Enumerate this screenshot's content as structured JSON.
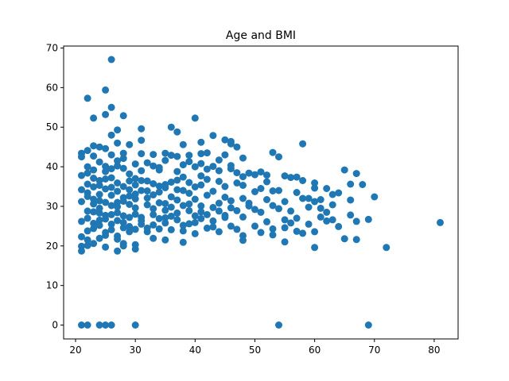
{
  "chart_data": {
    "type": "scatter",
    "title": "Age and BMI",
    "xlabel": "",
    "ylabel": "",
    "xlim": [
      18,
      84
    ],
    "ylim": [
      -3.5,
      70.5
    ],
    "xticks": [
      20,
      30,
      40,
      50,
      60,
      70,
      80
    ],
    "yticks": [
      0,
      10,
      20,
      30,
      40,
      50,
      60,
      70
    ],
    "grid": false,
    "legend": "none",
    "marker_color": "#1f77b4",
    "points": [
      [
        21,
        0
      ],
      [
        22,
        0
      ],
      [
        24,
        0
      ],
      [
        25,
        0
      ],
      [
        26,
        0
      ],
      [
        30,
        0
      ],
      [
        54,
        0
      ],
      [
        69,
        0
      ],
      [
        26,
        67.1
      ],
      [
        25,
        59.4
      ],
      [
        22,
        57.3
      ],
      [
        26,
        55
      ],
      [
        25,
        53.2
      ],
      [
        23,
        52.3
      ],
      [
        28,
        52.9
      ],
      [
        40,
        52.3
      ],
      [
        36,
        50.0
      ],
      [
        31,
        49.6
      ],
      [
        27,
        49.3
      ],
      [
        37,
        48.8
      ],
      [
        26,
        48.0
      ],
      [
        43,
        47.9
      ],
      [
        45,
        46.8
      ],
      [
        46,
        46.4
      ],
      [
        41,
        46.2
      ],
      [
        31,
        46.7
      ],
      [
        27,
        46.0
      ],
      [
        29,
        45.6
      ],
      [
        38,
        45.6
      ],
      [
        46,
        45.8
      ],
      [
        47,
        45.0
      ],
      [
        23,
        45.3
      ],
      [
        24,
        45.0
      ],
      [
        25,
        44.6
      ],
      [
        22,
        44.1
      ],
      [
        21,
        43.4
      ],
      [
        21,
        42.5
      ],
      [
        23,
        42.7
      ],
      [
        26,
        43.0
      ],
      [
        28,
        43.4
      ],
      [
        31,
        43.3
      ],
      [
        33,
        43.1
      ],
      [
        35,
        43.4
      ],
      [
        36,
        42.9
      ],
      [
        41,
        43.3
      ],
      [
        42,
        43.5
      ],
      [
        45,
        43.0
      ],
      [
        48,
        42.2
      ],
      [
        53,
        43.6
      ],
      [
        54,
        42.5
      ],
      [
        58,
        45.8
      ],
      [
        33,
        40.2
      ],
      [
        30,
        40.7
      ],
      [
        27,
        40.2
      ],
      [
        22,
        40.0
      ],
      [
        25,
        40.1
      ],
      [
        28,
        39.6
      ],
      [
        31,
        39.0
      ],
      [
        34,
        39.2
      ],
      [
        37,
        38.8
      ],
      [
        38,
        40.5
      ],
      [
        39,
        41.3
      ],
      [
        40,
        40.0
      ],
      [
        42,
        39.4
      ],
      [
        43,
        40.1
      ],
      [
        44,
        39.0
      ],
      [
        46,
        39.5
      ],
      [
        47,
        38.5
      ],
      [
        49,
        38.4
      ],
      [
        51,
        38.7
      ],
      [
        52,
        37.9
      ],
      [
        55,
        37.7
      ],
      [
        56,
        37.3
      ],
      [
        57,
        37.4
      ],
      [
        58,
        36.5
      ],
      [
        60,
        35.9
      ],
      [
        62,
        34.5
      ],
      [
        63,
        33.0
      ],
      [
        65,
        39.2
      ],
      [
        66,
        35.6
      ],
      [
        67,
        38.3
      ],
      [
        68,
        35.5
      ],
      [
        70,
        32.4
      ],
      [
        21,
        37.8
      ],
      [
        23,
        37.1
      ],
      [
        24,
        36.5
      ],
      [
        26,
        37.2
      ],
      [
        27,
        35.9
      ],
      [
        29,
        36.4
      ],
      [
        30,
        37.0
      ],
      [
        32,
        36.4
      ],
      [
        33,
        35.7
      ],
      [
        35,
        35.5
      ],
      [
        36,
        36.1
      ],
      [
        38,
        37.4
      ],
      [
        39,
        36.0
      ],
      [
        41,
        35.4
      ],
      [
        42,
        36.8
      ],
      [
        44,
        36.3
      ],
      [
        45,
        35.0
      ],
      [
        47,
        35.9
      ],
      [
        48,
        35.3
      ],
      [
        50,
        33.7
      ],
      [
        51,
        34.5
      ],
      [
        52,
        36.2
      ],
      [
        53,
        33.9
      ],
      [
        54,
        34.0
      ],
      [
        57,
        33.5
      ],
      [
        59,
        32.0
      ],
      [
        60,
        34.6
      ],
      [
        61,
        31.7
      ],
      [
        64,
        33.4
      ],
      [
        21,
        34.2
      ],
      [
        22,
        33.4
      ],
      [
        24,
        33.0
      ],
      [
        25,
        34.4
      ],
      [
        27,
        33.8
      ],
      [
        28,
        32.2
      ],
      [
        30,
        33.1
      ],
      [
        31,
        34.0
      ],
      [
        33,
        32.9
      ],
      [
        34,
        33.6
      ],
      [
        36,
        32.4
      ],
      [
        37,
        34.2
      ],
      [
        39,
        33.3
      ],
      [
        40,
        31.8
      ],
      [
        42,
        32.8
      ],
      [
        43,
        33.8
      ],
      [
        45,
        32.3
      ],
      [
        46,
        31.4
      ],
      [
        48,
        32.0
      ],
      [
        49,
        30.8
      ],
      [
        52,
        31.7
      ],
      [
        53,
        30.2
      ],
      [
        55,
        31.2
      ],
      [
        58,
        32.0
      ],
      [
        60,
        31.2
      ],
      [
        61,
        29.5
      ],
      [
        63,
        30.4
      ],
      [
        66,
        31.6
      ],
      [
        21,
        31.2
      ],
      [
        23,
        30.6
      ],
      [
        24,
        31.4
      ],
      [
        26,
        30.2
      ],
      [
        27,
        31.0
      ],
      [
        29,
        30.5
      ],
      [
        30,
        29.6
      ],
      [
        32,
        30.4
      ],
      [
        33,
        29.4
      ],
      [
        35,
        30.7
      ],
      [
        36,
        29.8
      ],
      [
        38,
        30.2
      ],
      [
        39,
        28.9
      ],
      [
        41,
        30.1
      ],
      [
        43,
        29.7
      ],
      [
        44,
        28.8
      ],
      [
        46,
        29.6
      ],
      [
        47,
        28.9
      ],
      [
        49,
        30.1
      ],
      [
        50,
        29.2
      ],
      [
        51,
        28.5
      ],
      [
        54,
        29.4
      ],
      [
        56,
        28.8
      ],
      [
        59,
        29.8
      ],
      [
        62,
        28.5
      ],
      [
        22,
        28.8
      ],
      [
        24,
        28.3
      ],
      [
        25,
        27.7
      ],
      [
        27,
        28.4
      ],
      [
        28,
        27.6
      ],
      [
        30,
        28.0
      ],
      [
        31,
        27.2
      ],
      [
        33,
        27.9
      ],
      [
        34,
        26.9
      ],
      [
        36,
        27.5
      ],
      [
        37,
        28.3
      ],
      [
        40,
        27.6
      ],
      [
        42,
        27.9
      ],
      [
        45,
        27.2
      ],
      [
        48,
        27.3
      ],
      [
        52,
        26.1
      ],
      [
        55,
        26.6
      ],
      [
        57,
        27.0
      ],
      [
        61,
        27.3
      ],
      [
        63,
        26.6
      ],
      [
        66,
        27.8
      ],
      [
        69,
        26.7
      ],
      [
        21,
        26.2
      ],
      [
        23,
        25.7
      ],
      [
        24,
        26.5
      ],
      [
        26,
        25.5
      ],
      [
        28,
        25.9
      ],
      [
        29,
        24.9
      ],
      [
        31,
        25.5
      ],
      [
        32,
        24.5
      ],
      [
        35,
        25.8
      ],
      [
        38,
        25.2
      ],
      [
        40,
        25.9
      ],
      [
        43,
        26.3
      ],
      [
        46,
        25.0
      ],
      [
        50,
        25.0
      ],
      [
        53,
        24.3
      ],
      [
        56,
        25.8
      ],
      [
        59,
        25.5
      ],
      [
        62,
        26.3
      ],
      [
        64,
        24.9
      ],
      [
        67,
        26.2
      ],
      [
        22,
        23.8
      ],
      [
        23,
        24.4
      ],
      [
        25,
        23.4
      ],
      [
        26,
        24.1
      ],
      [
        27,
        22.5
      ],
      [
        29,
        23.6
      ],
      [
        30,
        24.2
      ],
      [
        32,
        23.6
      ],
      [
        34,
        24.3
      ],
      [
        36,
        24.1
      ],
      [
        38,
        23.8
      ],
      [
        40,
        23.1
      ],
      [
        42,
        24.5
      ],
      [
        44,
        23.6
      ],
      [
        47,
        24.2
      ],
      [
        48,
        22.6
      ],
      [
        51,
        23.4
      ],
      [
        53,
        22.8
      ],
      [
        55,
        24.6
      ],
      [
        57,
        23.7
      ],
      [
        58,
        23.2
      ],
      [
        60,
        23.6
      ],
      [
        21,
        22.3
      ],
      [
        22,
        21.5
      ],
      [
        24,
        21.9
      ],
      [
        25,
        22.7
      ],
      [
        27,
        21.7
      ],
      [
        28,
        20.6
      ],
      [
        30,
        20.3
      ],
      [
        33,
        21.9
      ],
      [
        35,
        21.5
      ],
      [
        38,
        20.9
      ],
      [
        48,
        21.4
      ],
      [
        55,
        21.0
      ],
      [
        65,
        21.8
      ],
      [
        67,
        21.6
      ],
      [
        21,
        19.9
      ],
      [
        22,
        20.1
      ],
      [
        23,
        20.6
      ],
      [
        25,
        19.7
      ],
      [
        28,
        20.0
      ],
      [
        21,
        18.7
      ],
      [
        27,
        18.7
      ],
      [
        30,
        19.2
      ],
      [
        60,
        19.6
      ],
      [
        72,
        19.6
      ],
      [
        81,
        25.9
      ],
      [
        22,
        38.4
      ],
      [
        23,
        39.2
      ],
      [
        24,
        41.2
      ],
      [
        25,
        38.8
      ],
      [
        26,
        39.5
      ],
      [
        27,
        41.5
      ],
      [
        28,
        42.1
      ],
      [
        29,
        38.2
      ],
      [
        32,
        41.0
      ],
      [
        34,
        39.8
      ],
      [
        35,
        41.6
      ],
      [
        37,
        42.6
      ],
      [
        39,
        42.9
      ],
      [
        41,
        40.8
      ],
      [
        44,
        41.7
      ],
      [
        46,
        40.3
      ],
      [
        48,
        37.5
      ],
      [
        50,
        38.0
      ],
      [
        22,
        35.6
      ],
      [
        23,
        34.9
      ],
      [
        24,
        35.3
      ],
      [
        25,
        36.9
      ],
      [
        26,
        34.8
      ],
      [
        28,
        35.0
      ],
      [
        29,
        34.2
      ],
      [
        30,
        35.4
      ],
      [
        31,
        36.5
      ],
      [
        32,
        33.9
      ],
      [
        34,
        35.1
      ],
      [
        35,
        34.7
      ],
      [
        37,
        36.6
      ],
      [
        38,
        34.0
      ],
      [
        40,
        34.9
      ],
      [
        41,
        37.7
      ],
      [
        22,
        32.5
      ],
      [
        23,
        31.8
      ],
      [
        24,
        29.5
      ],
      [
        25,
        31.0
      ],
      [
        26,
        32.8
      ],
      [
        27,
        29.9
      ],
      [
        28,
        31.3
      ],
      [
        29,
        32.6
      ],
      [
        30,
        31.9
      ],
      [
        32,
        32.1
      ],
      [
        34,
        30.9
      ],
      [
        35,
        29.0
      ],
      [
        37,
        31.6
      ],
      [
        39,
        30.6
      ],
      [
        41,
        28.6
      ],
      [
        44,
        30.8
      ],
      [
        22,
        27.0
      ],
      [
        23,
        28.6
      ],
      [
        24,
        25.2
      ],
      [
        25,
        26.8
      ],
      [
        26,
        27.9
      ],
      [
        27,
        26.4
      ],
      [
        28,
        24.6
      ],
      [
        29,
        27.2
      ],
      [
        31,
        26.4
      ],
      [
        33,
        25.3
      ],
      [
        35,
        27.1
      ],
      [
        37,
        26.6
      ],
      [
        39,
        25.6
      ],
      [
        41,
        26.9
      ],
      [
        43,
        24.8
      ],
      [
        45,
        27.7
      ]
    ]
  }
}
